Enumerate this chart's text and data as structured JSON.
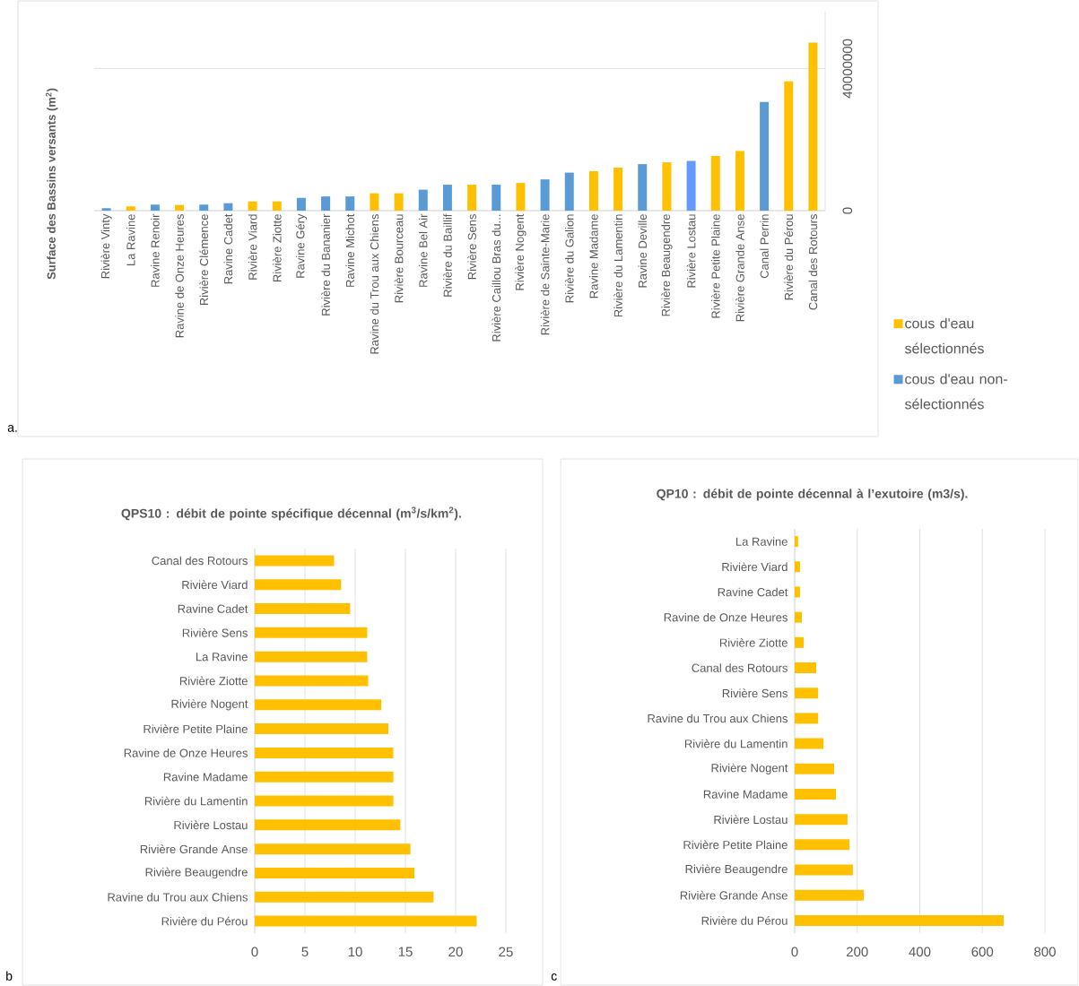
{
  "chart_data": [
    {
      "type": "bar",
      "categories": [
        "Rivière Vinty",
        "La Ravine",
        "Ravine Renoir",
        "Ravine de Onze Heures",
        "Rivière Clémence",
        "Ravine Cadet",
        "Rivière Viard",
        "Rivière Ziotte",
        "Ravine Géry",
        "Rivière du Bananier",
        "Ravine Michot",
        "Ravine du Trou aux Chiens",
        "Rivière Bourceau",
        "Ravine Bel Air",
        "Rivière du Baillif",
        "Rivière Sens",
        "Rivière Caillou Bras du...",
        "Rivière Nogent",
        "Rivière de Sainte-Marie",
        "Rivière du Galion",
        "Ravine Madame",
        "Rivière du Lamentin",
        "Ravine Deville",
        "Rivière Beaugendre",
        "Rivière Lostau",
        "Rivière Petite Plaine",
        "Rivière Grande Anse",
        "Canal Perrin",
        "Rivière du Pérou",
        "Canal des Rotours"
      ],
      "series": [
        {
          "name": "cous d'eau sélectionnés",
          "color": "#ffc000",
          "values": [
            null,
            1200000,
            null,
            1600000,
            null,
            null,
            2600000,
            2600000,
            null,
            null,
            null,
            4900000,
            4900000,
            null,
            null,
            7300000,
            null,
            7800000,
            null,
            null,
            11100000,
            12100000,
            null,
            13600000,
            null,
            15400000,
            16800000,
            null,
            36400000,
            47300000
          ]
        },
        {
          "name": "cous d'eau non-sélectionnés",
          "color": "#5b9bd5",
          "values": [
            700000,
            null,
            1700000,
            null,
            1700000,
            2100000,
            null,
            null,
            3600000,
            4000000,
            4000000,
            null,
            null,
            5900000,
            7300000,
            null,
            7300000,
            null,
            8800000,
            10700000,
            null,
            null,
            13100000,
            null,
            null,
            null,
            null,
            30600000,
            null,
            null
          ]
        },
        {
          "color": "#6699ff",
          "values": [
            null,
            null,
            null,
            null,
            null,
            null,
            null,
            null,
            null,
            null,
            null,
            null,
            null,
            null,
            null,
            null,
            null,
            null,
            null,
            null,
            null,
            null,
            null,
            null,
            14000000,
            null,
            null,
            null,
            null,
            null
          ]
        }
      ],
      "ylim": [
        0,
        56000000
      ],
      "yticks": [
        0,
        40000000
      ],
      "ylabel": "Surface des Bassins versants (m$^{2}$)",
      "grid": "y",
      "legend": "bottom right",
      "annotations": [
        "a."
      ]
    },
    {
      "type": "bar",
      "orientation": "horizontal",
      "title": "QPS10 : débit de pointe spécifique décennal (m$^{3}$/s/km$^{2}$).",
      "categories": [
        "Canal des Rotours",
        "Rivière Viard",
        "Ravine Cadet",
        "Rivière Sens",
        "La Ravine",
        "Rivière Ziotte",
        "Rivière Nogent",
        "Rivière Petite Plaine",
        "Ravine de Onze Heures",
        "Ravine Madame",
        "Rivière du Lamentin",
        "Rivière Lostau",
        "Rivière Grande Anse",
        "Rivière Beaugendre",
        "Ravine du Trou aux Chiens",
        "Rivière du Pérou"
      ],
      "values": [
        7.9,
        8.6,
        9.5,
        11.2,
        11.2,
        11.3,
        12.6,
        13.3,
        13.8,
        13.8,
        13.8,
        14.5,
        15.5,
        15.9,
        17.8,
        22.1
      ],
      "color": "#ffc000",
      "xlim": [
        0,
        25
      ],
      "xticks": [
        0,
        5,
        10,
        15,
        20,
        25
      ],
      "grid": "x",
      "annotations": [
        "b"
      ]
    },
    {
      "type": "bar",
      "orientation": "horizontal",
      "title": "QP10 : débit de pointe décennal à l’exutoire (m3/s).",
      "categories": [
        "La Ravine",
        "Rivière Viard",
        "Ravine Cadet",
        "Ravine de Onze Heures",
        "Rivière Ziotte",
        "Canal des Rotours",
        "Rivière Sens",
        "Ravine du Trou aux Chiens",
        "Rivière du Lamentin",
        "Rivière Nogent",
        "Ravine Madame",
        "Rivière Lostau",
        "Rivière Petite Plaine",
        "Rivière Beaugendre",
        "Rivière Grande Anse",
        "Rivière du Pérou"
      ],
      "values": [
        11,
        17,
        17,
        23,
        29,
        69,
        75,
        75,
        92,
        126,
        132,
        169,
        175,
        186,
        221,
        668
      ],
      "color": "#ffc000",
      "xlim": [
        0,
        800
      ],
      "xticks": [
        0,
        200,
        400,
        600,
        800
      ],
      "grid": "x",
      "annotations": [
        "c"
      ]
    }
  ]
}
